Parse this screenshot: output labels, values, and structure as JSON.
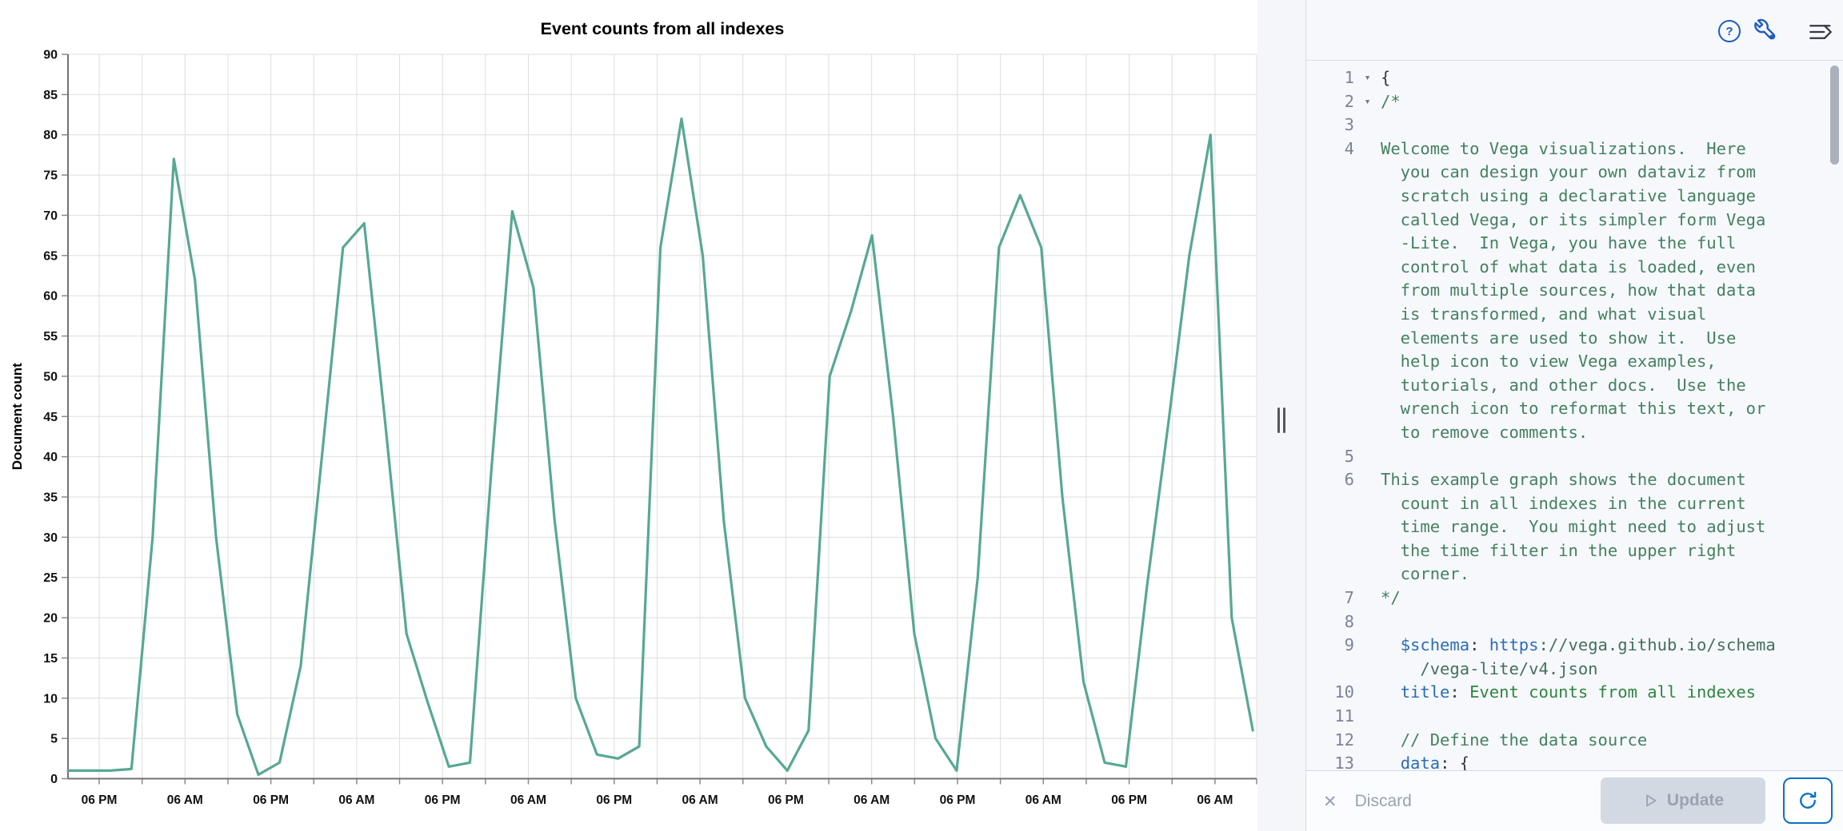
{
  "chart_data": {
    "type": "line",
    "title": "Event counts from all indexes",
    "xlabel": "",
    "ylabel": "Document count",
    "ylim": [
      0,
      90
    ],
    "y_tick_step": 5,
    "grid": true,
    "legend": false,
    "x_axis": {
      "kind": "time",
      "tick_labels": [
        "06 PM",
        "06 AM",
        "06 PM",
        "06 AM",
        "06 PM",
        "06 AM",
        "06 PM",
        "06 AM",
        "06 PM",
        "06 AM",
        "06 PM",
        "06 AM",
        "06 PM",
        "06 AM"
      ],
      "minor_ticks_between_labels": 1,
      "note": "labels every 12 hours, gridlines every 6 hours, ~7 days total"
    },
    "series": [
      {
        "name": "Document count",
        "color": "#57a893",
        "x_step_hours": 3,
        "values": [
          1,
          1,
          1,
          1.2,
          30,
          77,
          62,
          30,
          8,
          0.5,
          2,
          14,
          40,
          66,
          69,
          44,
          18,
          9.5,
          1.5,
          2,
          38,
          70.5,
          61,
          32,
          10,
          3,
          2.5,
          4,
          66,
          82,
          65,
          32,
          10,
          4,
          1,
          6,
          50,
          58,
          67.5,
          45,
          18,
          5,
          1,
          25,
          66,
          72.5,
          66,
          35,
          12,
          2,
          1.5,
          24,
          44,
          65,
          80,
          20,
          6
        ]
      }
    ]
  },
  "editor": {
    "rows": [
      {
        "n": "1",
        "fold": true,
        "segs": [
          [
            "p",
            "{"
          ]
        ]
      },
      {
        "n": "2",
        "fold": true,
        "segs": [
          [
            "c",
            "/*"
          ]
        ]
      },
      {
        "n": "3",
        "segs": []
      },
      {
        "n": "4",
        "segs": [
          [
            "c",
            "Welcome to Vega visualizations.  Here"
          ]
        ]
      },
      {
        "n": "",
        "segs": [
          [
            "c",
            "  you can design your own dataviz from"
          ]
        ]
      },
      {
        "n": "",
        "segs": [
          [
            "c",
            "  scratch using a declarative language"
          ]
        ]
      },
      {
        "n": "",
        "segs": [
          [
            "c",
            "  called Vega, or its simpler form Vega"
          ]
        ]
      },
      {
        "n": "",
        "segs": [
          [
            "c",
            "  -Lite.  In Vega, you have the full"
          ]
        ]
      },
      {
        "n": "",
        "segs": [
          [
            "c",
            "  control of what data is loaded, even"
          ]
        ]
      },
      {
        "n": "",
        "segs": [
          [
            "c",
            "  from multiple sources, how that data"
          ]
        ]
      },
      {
        "n": "",
        "segs": [
          [
            "c",
            "  is transformed, and what visual"
          ]
        ]
      },
      {
        "n": "",
        "segs": [
          [
            "c",
            "  elements are used to show it.  Use"
          ]
        ]
      },
      {
        "n": "",
        "segs": [
          [
            "c",
            "  help icon to view Vega examples,"
          ]
        ]
      },
      {
        "n": "",
        "segs": [
          [
            "c",
            "  tutorials, and other docs.  Use the"
          ]
        ]
      },
      {
        "n": "",
        "segs": [
          [
            "c",
            "  wrench icon to reformat this text, or"
          ]
        ]
      },
      {
        "n": "",
        "segs": [
          [
            "c",
            "  to remove comments."
          ]
        ]
      },
      {
        "n": "5",
        "segs": []
      },
      {
        "n": "6",
        "segs": [
          [
            "c",
            "This example graph shows the document"
          ]
        ]
      },
      {
        "n": "",
        "segs": [
          [
            "c",
            "  count in all indexes in the current"
          ]
        ]
      },
      {
        "n": "",
        "segs": [
          [
            "c",
            "  time range.  You might need to adjust"
          ]
        ]
      },
      {
        "n": "",
        "segs": [
          [
            "c",
            "  the time filter in the upper right"
          ]
        ]
      },
      {
        "n": "",
        "segs": [
          [
            "c",
            "  corner."
          ]
        ]
      },
      {
        "n": "7",
        "segs": [
          [
            "c",
            "*/"
          ]
        ]
      },
      {
        "n": "8",
        "segs": []
      },
      {
        "n": "9",
        "segs": [
          [
            "p",
            "  "
          ],
          [
            "k",
            "$schema"
          ],
          [
            "p",
            ": "
          ],
          [
            "k",
            "https"
          ],
          [
            "u",
            "://vega.github.io/schema"
          ]
        ]
      },
      {
        "n": "",
        "segs": [
          [
            "u",
            "    /vega-lite/v4.json"
          ]
        ]
      },
      {
        "n": "10",
        "segs": [
          [
            "p",
            "  "
          ],
          [
            "k",
            "title"
          ],
          [
            "p",
            ": "
          ],
          [
            "s",
            "Event counts from all indexes"
          ]
        ]
      },
      {
        "n": "11",
        "segs": []
      },
      {
        "n": "12",
        "segs": [
          [
            "p",
            "  "
          ],
          [
            "c",
            "// Define the data source"
          ]
        ]
      },
      {
        "n": "13",
        "segs": [
          [
            "p",
            "  "
          ],
          [
            "k",
            "data"
          ],
          [
            "p",
            ": "
          ],
          [
            "p",
            "{"
          ]
        ]
      }
    ]
  },
  "icons": {
    "help_glyph": "?",
    "discard_glyph": "✕",
    "wrench": "wrench",
    "menu": "menu-right-arrow",
    "refresh": "refresh",
    "update_play": "play-outline",
    "resizer_grip": "vertical-bars"
  },
  "footer": {
    "discard_label": "Discard",
    "update_label": "Update"
  },
  "theme": {
    "line_color": "#57a893",
    "icon_blue": "#1d5cc0",
    "refresh_blue": "#0c70c4",
    "border": "#d3dae6",
    "disabled_text": "#98a2b3"
  }
}
